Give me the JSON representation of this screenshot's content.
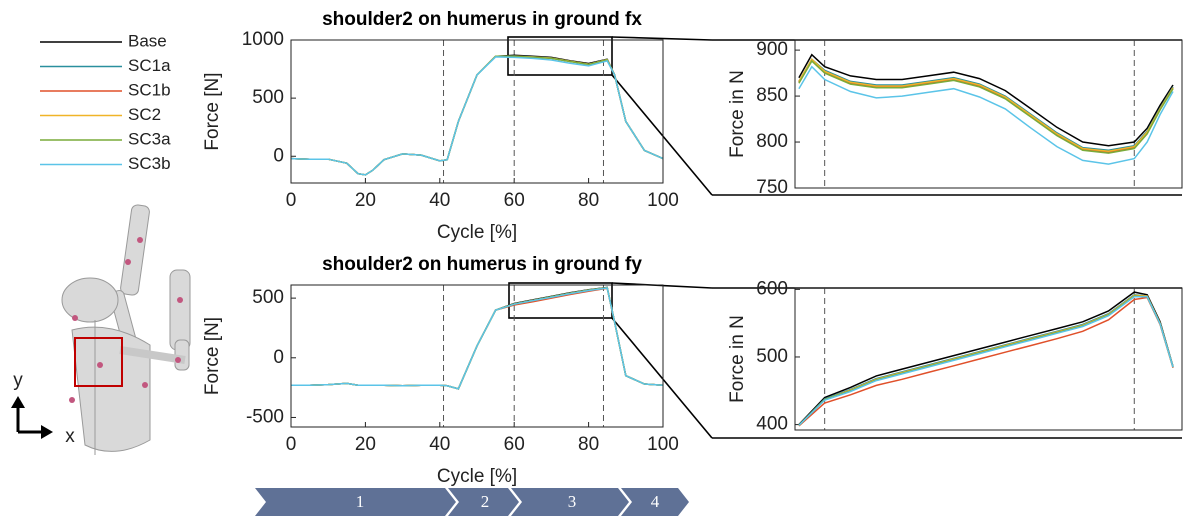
{
  "chart_data": [
    {
      "type": "line",
      "title": "shoulder2 on humerus in ground fx",
      "xlabel": "Cycle [%]",
      "ylabel": "Force [N]",
      "xlim": [
        0,
        100
      ],
      "ylim": [
        -230,
        1000
      ],
      "xticks": [
        0,
        20,
        40,
        60,
        80,
        100
      ],
      "yticks": [
        0,
        500,
        1000
      ],
      "vlines": [
        41,
        60,
        84
      ],
      "x": [
        0,
        5,
        10,
        15,
        18,
        20,
        22,
        25,
        30,
        35,
        40,
        42,
        45,
        50,
        55,
        60,
        65,
        70,
        75,
        80,
        85,
        87,
        90,
        95,
        100
      ],
      "series": [
        {
          "name": "Base",
          "color": "#000000",
          "values": [
            -20,
            -25,
            -25,
            -60,
            -150,
            -160,
            -120,
            -30,
            20,
            10,
            -40,
            -30,
            300,
            700,
            860,
            868,
            860,
            850,
            822,
            798,
            835,
            700,
            300,
            50,
            -20
          ]
        },
        {
          "name": "SC1a",
          "color": "#2a8f9e",
          "values": [
            -20,
            -25,
            -25,
            -60,
            -150,
            -160,
            -120,
            -30,
            20,
            10,
            -40,
            -30,
            300,
            700,
            860,
            862,
            855,
            845,
            818,
            792,
            832,
            700,
            300,
            50,
            -20
          ]
        },
        {
          "name": "SC1b",
          "color": "#e0502a",
          "values": [
            -20,
            -25,
            -25,
            -60,
            -150,
            -160,
            -120,
            -30,
            20,
            10,
            -40,
            -30,
            300,
            700,
            860,
            860,
            853,
            843,
            816,
            790,
            830,
            700,
            300,
            50,
            -20
          ]
        },
        {
          "name": "SC2",
          "color": "#f0b428",
          "values": [
            -20,
            -25,
            -25,
            -60,
            -150,
            -160,
            -120,
            -30,
            20,
            10,
            -40,
            -30,
            300,
            700,
            860,
            861,
            854,
            844,
            817,
            791,
            831,
            700,
            300,
            50,
            -20
          ]
        },
        {
          "name": "SC3a",
          "color": "#7aab3a",
          "values": [
            -20,
            -25,
            -25,
            -60,
            -150,
            -160,
            -120,
            -30,
            20,
            10,
            -40,
            -30,
            300,
            700,
            860,
            859,
            852,
            842,
            815,
            789,
            829,
            700,
            300,
            50,
            -20
          ]
        },
        {
          "name": "SC3b",
          "color": "#5bc4e8",
          "values": [
            -20,
            -25,
            -25,
            -60,
            -150,
            -160,
            -120,
            -30,
            20,
            10,
            -40,
            -30,
            300,
            700,
            855,
            850,
            842,
            828,
            800,
            778,
            820,
            700,
            300,
            50,
            -20
          ]
        }
      ]
    },
    {
      "type": "line",
      "title": "shoulder2 on humerus in ground fy",
      "xlabel": "Cycle [%]",
      "ylabel": "Force [N]",
      "xlim": [
        0,
        100
      ],
      "ylim": [
        -580,
        610
      ],
      "xticks": [
        0,
        20,
        40,
        60,
        80,
        100
      ],
      "yticks": [
        -500,
        0,
        500
      ],
      "vlines": [
        41,
        60,
        84
      ],
      "x": [
        0,
        5,
        10,
        15,
        18,
        20,
        22,
        25,
        30,
        35,
        40,
        42,
        45,
        50,
        55,
        60,
        65,
        70,
        75,
        80,
        85,
        87,
        90,
        95,
        100
      ],
      "series": [
        {
          "name": "Base",
          "color": "#000000",
          "values": [
            -230,
            -230,
            -225,
            -215,
            -230,
            -230,
            -230,
            -230,
            -235,
            -230,
            -230,
            -235,
            -260,
            100,
            400,
            455,
            485,
            515,
            545,
            570,
            590,
            300,
            -150,
            -220,
            -230
          ]
        },
        {
          "name": "SC1a",
          "color": "#2a8f9e",
          "values": [
            -230,
            -230,
            -225,
            -215,
            -230,
            -230,
            -230,
            -230,
            -235,
            -230,
            -230,
            -235,
            -260,
            100,
            400,
            452,
            482,
            512,
            542,
            568,
            588,
            300,
            -150,
            -220,
            -230
          ]
        },
        {
          "name": "SC1b",
          "color": "#e0502a",
          "values": [
            -230,
            -230,
            -225,
            -215,
            -230,
            -230,
            -230,
            -230,
            -235,
            -230,
            -230,
            -235,
            -260,
            100,
            400,
            442,
            470,
            500,
            530,
            558,
            582,
            300,
            -150,
            -220,
            -230
          ]
        },
        {
          "name": "SC2",
          "color": "#f0b428",
          "values": [
            -230,
            -230,
            -225,
            -215,
            -230,
            -230,
            -230,
            -230,
            -235,
            -230,
            -230,
            -235,
            -260,
            100,
            400,
            451,
            481,
            511,
            541,
            567,
            587,
            300,
            -150,
            -220,
            -230
          ]
        },
        {
          "name": "SC3a",
          "color": "#7aab3a",
          "values": [
            -230,
            -230,
            -225,
            -215,
            -230,
            -230,
            -230,
            -230,
            -235,
            -230,
            -230,
            -235,
            -260,
            100,
            400,
            450,
            480,
            510,
            540,
            566,
            586,
            300,
            -150,
            -220,
            -230
          ]
        },
        {
          "name": "SC3b",
          "color": "#5bc4e8",
          "values": [
            -230,
            -230,
            -225,
            -215,
            -230,
            -230,
            -230,
            -230,
            -235,
            -230,
            -230,
            -235,
            -260,
            100,
            400,
            449,
            479,
            508,
            538,
            564,
            585,
            300,
            -150,
            -220,
            -230
          ]
        }
      ]
    },
    {
      "type": "line",
      "ylabel": "Force in N",
      "xlim": [
        57.7,
        87.7
      ],
      "ylim": [
        750,
        911
      ],
      "yticks": [
        750,
        800,
        850,
        900
      ],
      "vlines": [
        60,
        84
      ],
      "x": [
        58,
        59,
        60,
        62,
        64,
        66,
        68,
        70,
        72,
        74,
        76,
        78,
        80,
        82,
        84,
        85,
        86,
        87
      ],
      "series": [
        {
          "name": "Base",
          "color": "#000000",
          "values": [
            870,
            895,
            882,
            872,
            868,
            868,
            872,
            876,
            869,
            856,
            836,
            816,
            800,
            796,
            800,
            815,
            840,
            862
          ]
        },
        {
          "name": "SC1a",
          "color": "#2a8f9e",
          "values": [
            866,
            890,
            878,
            866,
            862,
            862,
            866,
            870,
            863,
            850,
            830,
            810,
            794,
            791,
            796,
            812,
            837,
            860
          ]
        },
        {
          "name": "SC1b",
          "color": "#e0502a",
          "values": [
            865,
            889,
            876,
            864,
            860,
            860,
            864,
            868,
            861,
            848,
            828,
            808,
            792,
            789,
            794,
            810,
            836,
            859
          ]
        },
        {
          "name": "SC2",
          "color": "#f0b428",
          "values": [
            866,
            890,
            877,
            865,
            861,
            861,
            865,
            869,
            862,
            849,
            829,
            809,
            793,
            790,
            795,
            811,
            836,
            859
          ]
        },
        {
          "name": "SC3a",
          "color": "#7aab3a",
          "values": [
            864,
            888,
            875,
            863,
            859,
            859,
            863,
            867,
            860,
            847,
            827,
            807,
            791,
            788,
            793,
            809,
            835,
            858
          ]
        },
        {
          "name": "SC3b",
          "color": "#5bc4e8",
          "values": [
            858,
            882,
            868,
            855,
            848,
            850,
            854,
            858,
            849,
            836,
            815,
            795,
            780,
            776,
            782,
            800,
            830,
            855
          ]
        }
      ]
    },
    {
      "type": "line",
      "ylabel": "Force in N",
      "xlim": [
        57.7,
        87.7
      ],
      "ylim": [
        392,
        602
      ],
      "yticks": [
        400,
        500,
        600
      ],
      "vlines": [
        60,
        84
      ],
      "x": [
        58,
        60,
        62,
        64,
        66,
        68,
        70,
        72,
        74,
        76,
        78,
        80,
        82,
        84,
        85,
        86,
        87
      ],
      "series": [
        {
          "name": "Base",
          "color": "#000000",
          "values": [
            400,
            440,
            455,
            472,
            482,
            492,
            502,
            512,
            522,
            532,
            542,
            552,
            568,
            596,
            592,
            552,
            486
          ]
        },
        {
          "name": "SC1a",
          "color": "#2a8f9e",
          "values": [
            399,
            438,
            452,
            468,
            478,
            488,
            498,
            508,
            518,
            528,
            538,
            548,
            564,
            592,
            590,
            550,
            485
          ]
        },
        {
          "name": "SC1b",
          "color": "#e0502a",
          "values": [
            398,
            432,
            444,
            458,
            467,
            477,
            487,
            497,
            507,
            517,
            527,
            538,
            555,
            585,
            588,
            548,
            484
          ]
        },
        {
          "name": "SC2",
          "color": "#f0b428",
          "values": [
            399,
            437,
            451,
            467,
            477,
            487,
            497,
            507,
            517,
            527,
            537,
            547,
            563,
            591,
            590,
            550,
            485
          ]
        },
        {
          "name": "SC3a",
          "color": "#7aab3a",
          "values": [
            399,
            437,
            450,
            466,
            476,
            486,
            496,
            506,
            516,
            526,
            536,
            546,
            562,
            590,
            589,
            549,
            485
          ]
        },
        {
          "name": "SC3b",
          "color": "#5bc4e8",
          "values": [
            399,
            436,
            449,
            465,
            475,
            485,
            495,
            505,
            515,
            525,
            535,
            545,
            561,
            589,
            589,
            549,
            485
          ]
        }
      ]
    }
  ],
  "phases": [
    "1",
    "2",
    "3",
    "4"
  ],
  "orientation": {
    "y": "y",
    "x": "x"
  }
}
